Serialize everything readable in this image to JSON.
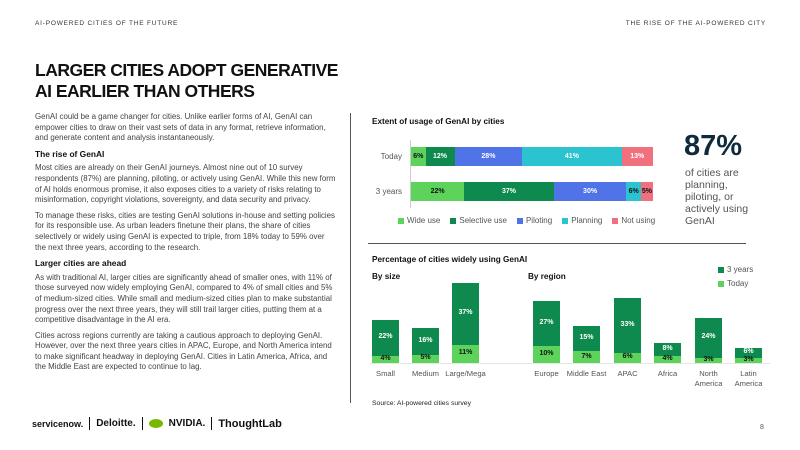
{
  "header": {
    "left": "AI-POWERED CITIES OF THE FUTURE",
    "right": "THE RISE OF THE AI-POWERED CITY"
  },
  "title": [
    "LARGER CITIES ADOPT GENERATIVE",
    "AI EARLIER THAN OTHERS"
  ],
  "body": {
    "intro": "GenAI could be a game changer for cities. Unlike earlier forms of AI, GenAI can empower cities to draw on their vast sets of data in any format, retrieve information, and generate content and analysis instantaneously.",
    "h1": "The rise of GenAI",
    "p1": "Most cities are already on their GenAI journeys. Almost nine out of 10 survey respondents (87%) are planning, piloting, or actively using GenAI. While this new form of AI holds enormous promise, it also exposes cities to a variety of risks relating to misinformation, copyright violations, sovereignty, and data security and privacy.",
    "p2": "To manage these risks, cities are testing GenAI solutions in-house and setting policies for its responsible use. As urban leaders finetune their plans, the share of cities selectively or widely using GenAI is expected to triple, from 18% today to 59% over the next three years, according to the research.",
    "h2": "Larger cities are ahead",
    "p3": "As with traditional AI, larger cities are significantly ahead of smaller ones, with 11% of those surveyed now widely employing GenAI, compared to 4% of small cities and 5% of medium-sized cities. While small and medium-sized cities plan to make substantial progress over the next three years, they will still trail larger cities, putting them at a competitive disadvantage in the AI era.",
    "p4": "Cities across regions currently are taking a cautious approach to deploying GenAI. However, over the next three years cities in APAC, Europe, and North America intend to make significant headway in deploying GenAI. Cities in Latin America, Africa, and the Middle East are expected to continue to lag."
  },
  "callout": {
    "value": "87%",
    "text": "of cities are planning, piloting, or actively using GenAI"
  },
  "colors": {
    "wide": "#5dd35b",
    "selective": "#0f8a4f",
    "piloting": "#5073e8",
    "planning": "#2ac3cf",
    "not": "#f0707e",
    "navy": "#0d2b3c"
  },
  "chart_data": [
    {
      "type": "bar",
      "orientation": "horizontal",
      "stacked": true,
      "title": "Extent of usage of GenAI by cities",
      "categories": [
        "Today",
        "3 years"
      ],
      "series": [
        {
          "name": "Wide use",
          "values": [
            6,
            22
          ]
        },
        {
          "name": "Selective use",
          "values": [
            12,
            37
          ]
        },
        {
          "name": "Piloting",
          "values": [
            28,
            30
          ]
        },
        {
          "name": "Planning",
          "values": [
            41,
            6
          ]
        },
        {
          "name": "Not using",
          "values": [
            13,
            5
          ]
        }
      ],
      "legend": "bottom"
    },
    {
      "type": "bar",
      "stacked": true,
      "title": "Percentage of cities widely using GenAI",
      "groups": [
        {
          "label": "By size",
          "categories": [
            "Small",
            "Medium",
            "Large/Mega"
          ],
          "today": [
            4,
            5,
            11
          ],
          "three_years": [
            22,
            16,
            37
          ]
        },
        {
          "label": "By region",
          "categories": [
            "Europe",
            "Middle East",
            "APAC",
            "Africa",
            "North America",
            "Latin America"
          ],
          "today": [
            10,
            7,
            6,
            4,
            3,
            3
          ],
          "three_years": [
            27,
            15,
            33,
            8,
            24,
            6
          ]
        }
      ],
      "series_names": [
        "3 years",
        "Today"
      ],
      "legend": "top-right"
    }
  ],
  "source": "Source: AI-powered cities survey",
  "page_number": "8",
  "logos": [
    "servicenow.",
    "Deloitte.",
    "NVIDIA.",
    "ThoughtLab"
  ]
}
